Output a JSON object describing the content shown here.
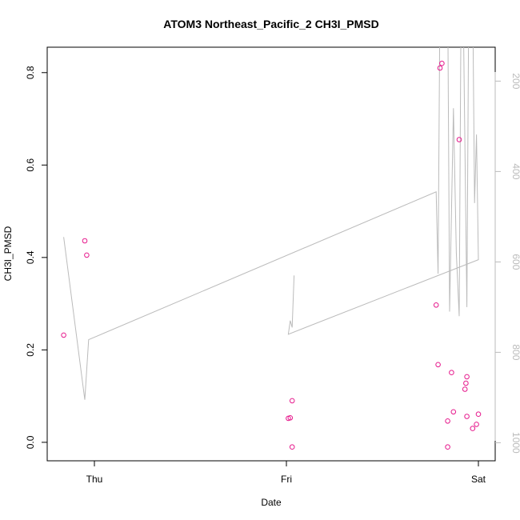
{
  "chart_data": {
    "type": "scatter",
    "title": "ATOM3 Northeast_Pacific_2 CH3I_PMSD",
    "xlabel": "Date",
    "ylabel": "CH3I_PMSD",
    "x_ticks": [
      "Thu",
      "Fri",
      "Sat"
    ],
    "y_ticks": [
      "0.0",
      "0.2",
      "0.4",
      "0.6",
      "0.8"
    ],
    "y_range": [
      -0.04,
      0.855
    ],
    "right_axis": {
      "ticks": [
        "200",
        "400",
        "600",
        "800",
        "1000"
      ],
      "range": [
        1040,
        125
      ],
      "reversed": true,
      "color": "#bbbbbb"
    },
    "grid": false,
    "colors": {
      "points": "#e6198c",
      "line": "#bbbbbb"
    },
    "points": [
      {
        "x": -0.16,
        "y": 0.232
      },
      {
        "x": -0.05,
        "y": 0.436
      },
      {
        "x": -0.04,
        "y": 0.405
      },
      {
        "x": 1.01,
        "y": 0.052
      },
      {
        "x": 1.02,
        "y": 0.053
      },
      {
        "x": 1.03,
        "y": 0.09
      },
      {
        "x": 1.03,
        "y": -0.01
      },
      {
        "x": 1.78,
        "y": 0.297
      },
      {
        "x": 1.79,
        "y": 0.168
      },
      {
        "x": 1.8,
        "y": 0.81
      },
      {
        "x": 1.81,
        "y": 0.82
      },
      {
        "x": 1.84,
        "y": 0.046
      },
      {
        "x": 1.84,
        "y": -0.01
      },
      {
        "x": 1.86,
        "y": 0.151
      },
      {
        "x": 1.87,
        "y": 0.066
      },
      {
        "x": 1.9,
        "y": 0.655
      },
      {
        "x": 1.93,
        "y": 0.115
      },
      {
        "x": 1.935,
        "y": 0.128
      },
      {
        "x": 1.94,
        "y": 0.142
      },
      {
        "x": 1.94,
        "y": 0.056
      },
      {
        "x": 1.97,
        "y": 0.03
      },
      {
        "x": 1.99,
        "y": 0.039
      },
      {
        "x": 2.0,
        "y": 0.061
      }
    ],
    "line": [
      {
        "x": -0.16,
        "y": 545
      },
      {
        "x": -0.05,
        "y": 905
      },
      {
        "x": -0.03,
        "y": 772
      },
      {
        "x": 1.78,
        "y": 445
      },
      {
        "x": 1.79,
        "y": 626
      },
      {
        "x": 1.8,
        "y": 0
      },
      {
        "x": 1.84,
        "y": 0
      },
      {
        "x": 1.85,
        "y": 710
      },
      {
        "x": 1.87,
        "y": 260
      },
      {
        "x": 1.885,
        "y": 580
      },
      {
        "x": 1.9,
        "y": 720
      },
      {
        "x": 1.91,
        "y": 0
      },
      {
        "x": 1.92,
        "y": 0
      },
      {
        "x": 1.94,
        "y": 700
      },
      {
        "x": 1.95,
        "y": 0
      },
      {
        "x": 1.97,
        "y": 0
      },
      {
        "x": 1.98,
        "y": 470
      },
      {
        "x": 1.99,
        "y": 318
      },
      {
        "x": 2.0,
        "y": 595
      },
      {
        "x": 1.01,
        "y": 760
      },
      {
        "x": 1.02,
        "y": 730
      },
      {
        "x": 1.03,
        "y": 745
      },
      {
        "x": 1.04,
        "y": 630
      }
    ]
  }
}
